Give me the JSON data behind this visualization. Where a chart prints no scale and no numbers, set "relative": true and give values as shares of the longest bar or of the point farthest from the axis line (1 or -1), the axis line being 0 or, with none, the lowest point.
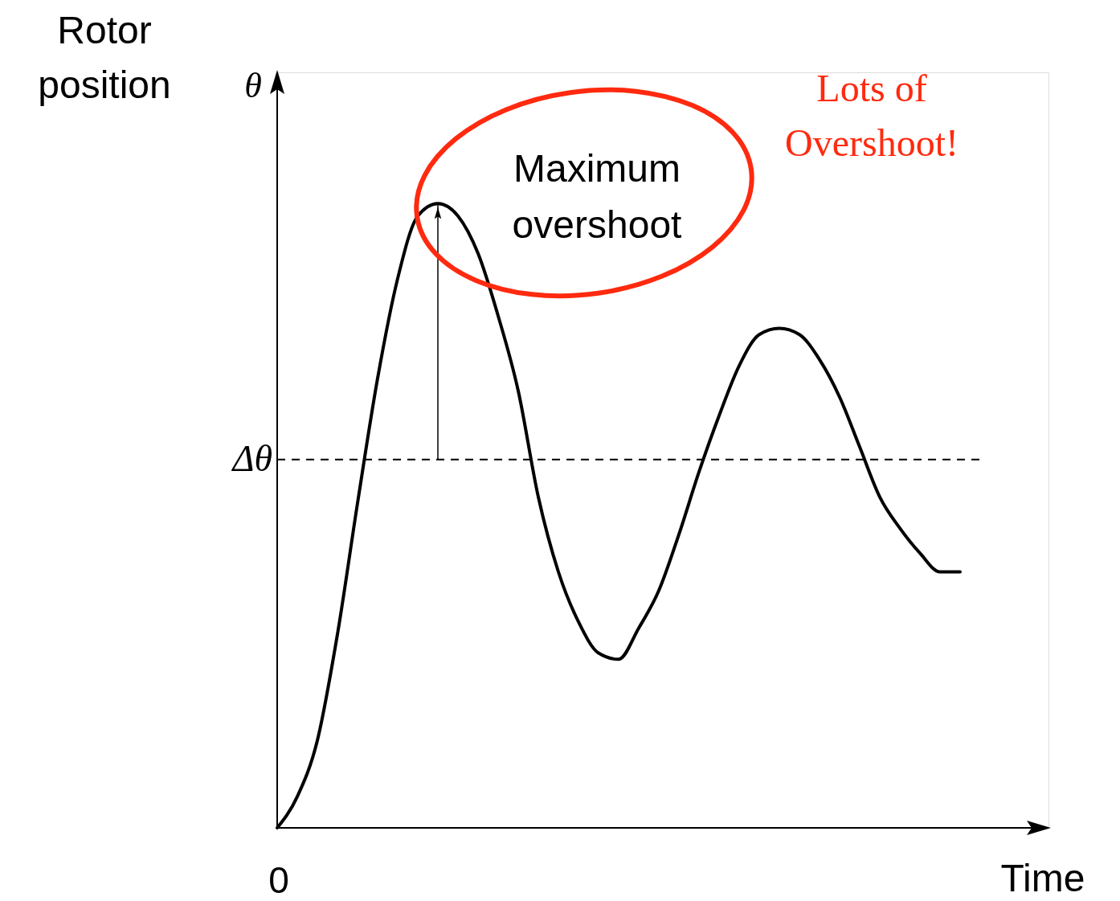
{
  "chart_data": {
    "type": "line",
    "relative": true,
    "xlabel": "Time",
    "ylabel": "Rotor position",
    "categories": [
      null,
      null,
      null,
      null,
      null,
      null,
      null,
      null,
      null,
      null,
      null,
      null,
      null,
      null,
      null,
      null,
      null,
      null,
      null,
      null,
      null,
      null,
      null,
      null,
      null,
      null,
      null,
      null,
      null,
      null,
      null,
      null,
      null,
      null,
      null
    ],
    "series": [
      {
        "color": "#000000",
        "values": [
          0,
          0.05,
          0.14,
          0.31,
          0.52,
          0.72,
          0.88,
          0.98,
          1,
          0.98,
          0.92,
          0.82,
          0.7,
          0.53,
          0.41,
          0.33,
          0.28,
          0.27,
          0.32,
          0.38,
          0.47,
          0.57,
          0.66,
          0.74,
          0.79,
          0.8,
          0.79,
          0.75,
          0.69,
          0.61,
          0.53,
          0.48,
          0.44,
          0.41,
          0.41
        ]
      }
    ],
    "line_style": "solid",
    "ref_lines": [
      {
        "axis": "y",
        "value": 0.59,
        "label": "Δθ",
        "line_style": "dashed"
      }
    ],
    "annotations": [
      "θ",
      "0",
      "Maximum overshoot",
      "Lots of Overshoot!"
    ]
  }
}
